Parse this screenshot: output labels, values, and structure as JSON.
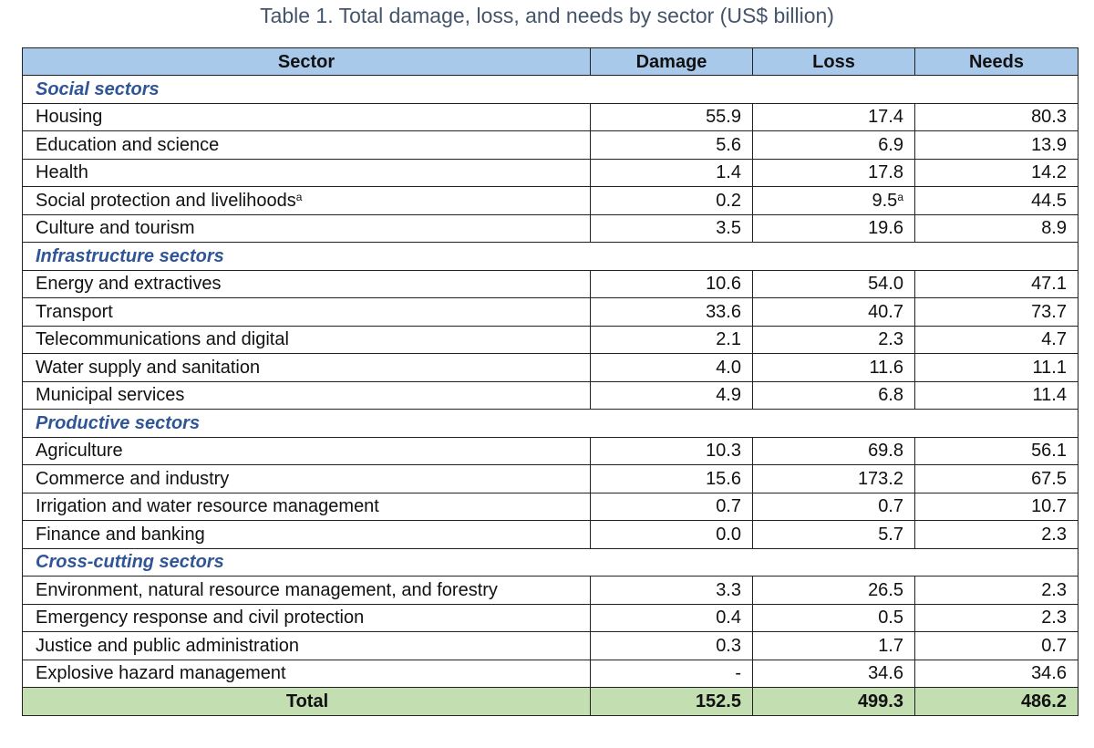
{
  "title": "Table 1. Total damage, loss, and needs by sector (US$ billion)",
  "headers": [
    "Sector",
    "Damage",
    "Loss",
    "Needs"
  ],
  "groups": [
    {
      "name": "Social sectors",
      "rows": [
        {
          "sector": "Housing",
          "damage": "55.9",
          "loss": "17.4",
          "needs": "80.3"
        },
        {
          "sector": "Education and science",
          "damage": "5.6",
          "loss": "6.9",
          "needs": "13.9"
        },
        {
          "sector": "Health",
          "damage": "1.4",
          "loss": "17.8",
          "needs": "14.2"
        },
        {
          "sector": "Social protection and livelihoods",
          "sector_note": "a",
          "damage": "0.2",
          "loss": "9.5",
          "loss_note": "a",
          "needs": "44.5"
        },
        {
          "sector": "Culture and tourism",
          "damage": "3.5",
          "loss": "19.6",
          "needs": "8.9"
        }
      ]
    },
    {
      "name": "Infrastructure sectors",
      "rows": [
        {
          "sector": "Energy and extractives",
          "damage": "10.6",
          "loss": "54.0",
          "needs": "47.1"
        },
        {
          "sector": "Transport",
          "damage": "33.6",
          "loss": "40.7",
          "needs": "73.7"
        },
        {
          "sector": "Telecommunications and digital",
          "damage": "2.1",
          "loss": "2.3",
          "needs": "4.7"
        },
        {
          "sector": "Water supply and sanitation",
          "damage": "4.0",
          "loss": "11.6",
          "needs": "11.1"
        },
        {
          "sector": "Municipal services",
          "damage": "4.9",
          "loss": "6.8",
          "needs": "11.4"
        }
      ]
    },
    {
      "name": "Productive sectors",
      "rows": [
        {
          "sector": "Agriculture",
          "damage": "10.3",
          "loss": "69.8",
          "needs": "56.1"
        },
        {
          "sector": "Commerce and industry",
          "damage": "15.6",
          "loss": "173.2",
          "needs": "67.5"
        },
        {
          "sector": "Irrigation and water resource management",
          "damage": "0.7",
          "loss": "0.7",
          "needs": "10.7"
        },
        {
          "sector": "Finance and banking",
          "damage": "0.0",
          "loss": "5.7",
          "needs": "2.3"
        }
      ]
    },
    {
      "name": "Cross-cutting sectors",
      "rows": [
        {
          "sector": "Environment, natural resource management, and forestry",
          "damage": "3.3",
          "loss": "26.5",
          "needs": "2.3"
        },
        {
          "sector": "Emergency response and civil protection",
          "damage": "0.4",
          "loss": "0.5",
          "needs": "2.3"
        },
        {
          "sector": "Justice and public administration",
          "damage": "0.3",
          "loss": "1.7",
          "needs": "0.7"
        },
        {
          "sector": "Explosive hazard management",
          "damage": "-",
          "loss": "34.6",
          "needs": "34.6"
        }
      ]
    }
  ],
  "total": {
    "label": "Total",
    "damage": "152.5",
    "loss": "499.3",
    "needs": "486.2"
  },
  "colors": {
    "header_bg": "#a9c9ea",
    "group_text": "#2f5597",
    "total_bg": "#c3deb1",
    "title_text": "#44546a"
  }
}
